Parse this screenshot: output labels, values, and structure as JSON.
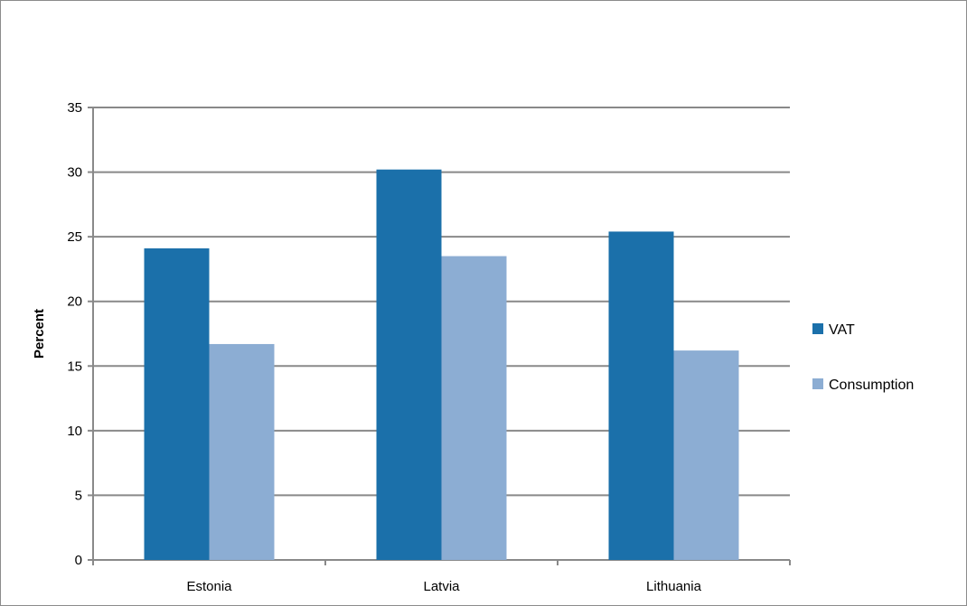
{
  "chart_data": {
    "type": "bar",
    "categories": [
      "Estonia",
      "Latvia",
      "Lithuania"
    ],
    "series": [
      {
        "name": "VAT",
        "values": [
          24.1,
          30.2,
          25.4
        ],
        "color": "#1b70aa"
      },
      {
        "name": "Consumption",
        "values": [
          16.7,
          23.5,
          16.2
        ],
        "color": "#8cadd3"
      }
    ],
    "title": "",
    "xlabel": "",
    "ylabel": "Percent",
    "ylim": [
      0,
      35
    ],
    "yticks": [
      0,
      5,
      10,
      15,
      20,
      25,
      30,
      35
    ],
    "grid": true,
    "legend_position": "right",
    "colors": {
      "gridline": "#898989",
      "axis": "#898989",
      "frame": "#8c8c8c"
    }
  }
}
